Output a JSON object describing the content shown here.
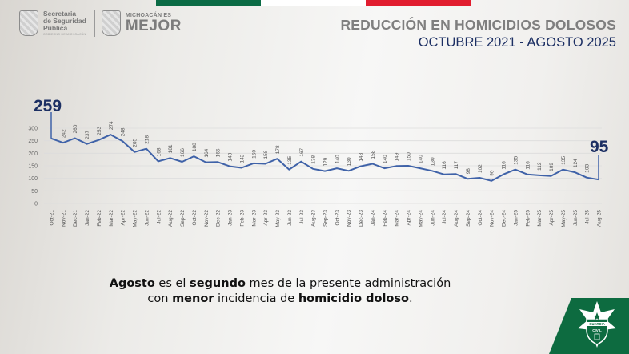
{
  "header": {
    "flag_colors": [
      "#0b6b45",
      "#ffffff",
      "#e11d2f"
    ],
    "ssp_logo": {
      "line1": "Secretaria",
      "line2": "de Seguridad",
      "line3": "Pública",
      "subtitle": "GOBIERNO DE MICHOACÁN"
    },
    "michoacan_logo": {
      "small": "MICHOACÁN ES",
      "big": "MEJOR"
    },
    "title": "REDUCCIÓN EN HOMICIDIOS DOLOSOS",
    "subtitle": "OCTUBRE 2021 - AGOSTO 2025"
  },
  "chart_data": {
    "type": "line",
    "title": "REDUCCIÓN EN HOMICIDIOS DOLOSOS",
    "subtitle": "OCTUBRE 2021 - AGOSTO 2025",
    "xlabel": "",
    "ylabel": "",
    "ylim": [
      0,
      300
    ],
    "yticks": [
      0,
      50,
      100,
      150,
      200,
      250,
      300
    ],
    "grid": true,
    "legend": "none",
    "line_color": "#3f62a8",
    "categories": [
      "Oct-21",
      "Nov-21",
      "Dec-21",
      "Jan-22",
      "Feb-22",
      "Mar-22",
      "Apr-22",
      "May-22",
      "Jun-22",
      "Jul-22",
      "Aug-22",
      "Sep-22",
      "Oct-22",
      "Nov-22",
      "Dec-22",
      "Jan-23",
      "Feb-23",
      "Mar-23",
      "Apr-23",
      "May-23",
      "Jun-23",
      "Jul-23",
      "Aug-23",
      "Sep-23",
      "Oct-23",
      "Nov-23",
      "Dec-23",
      "Jan-24",
      "Feb-24",
      "Mar-24",
      "Apr-24",
      "May-24",
      "Jun-24",
      "Jul-24",
      "Aug-24",
      "Sep-24",
      "Oct-24",
      "Nov-24",
      "Dec-24",
      "Jan-25",
      "Feb-25",
      "Mar-25",
      "Apr-25",
      "May-25",
      "Jun-25",
      "Jul-25",
      "Aug-25"
    ],
    "series": [
      {
        "name": "Homicidios dolosos",
        "values": [
          259,
          242,
          260,
          237,
          253,
          274,
          248,
          205,
          218,
          168,
          181,
          166,
          188,
          164,
          165,
          148,
          142,
          160,
          158,
          178,
          135,
          167,
          138,
          129,
          140,
          130,
          148,
          158,
          140,
          149,
          150,
          140,
          130,
          116,
          117,
          98,
          102,
          90,
          116,
          135,
          116,
          112,
          109,
          135,
          124,
          103,
          95
        ]
      }
    ],
    "annotations": [
      {
        "label": "259",
        "category": "Oct-21",
        "color": "#1c2f63"
      },
      {
        "label": "95",
        "category": "Aug-25",
        "color": "#1c2f63"
      }
    ]
  },
  "caption": {
    "w1": "Agosto",
    "t1": " es el ",
    "w2": "segundo",
    "t2": " mes de la presente administración",
    "t3": "con ",
    "w3": "menor",
    "t4": " incidencia de ",
    "w4": "homicidio doloso",
    "t5": "."
  },
  "badge": {
    "line1": "GUARDIA",
    "line2": "CIVIL",
    "color": "#0d6b40"
  }
}
